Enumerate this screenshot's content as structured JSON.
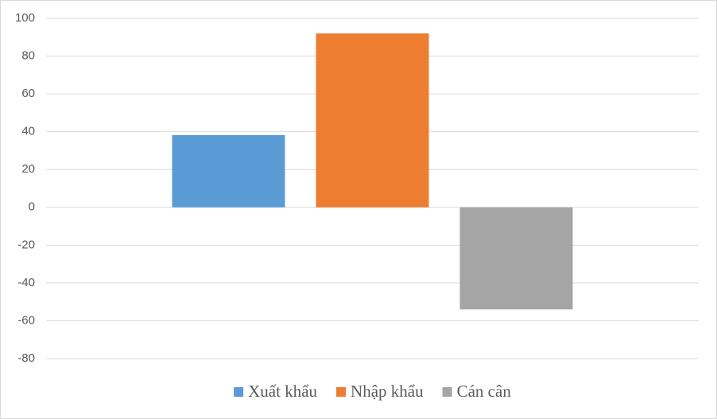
{
  "chart_data": {
    "type": "bar",
    "categories": [
      null
    ],
    "series": [
      {
        "name": "Xuất khẩu",
        "color": "#5b9bd5",
        "values": [
          38.2
        ]
      },
      {
        "name": "Nhập khẩu",
        "color": "#ed7d31",
        "values": [
          92
        ]
      },
      {
        "name": "Cán cân",
        "color": "#a5a5a5",
        "values": [
          -54
        ]
      }
    ],
    "ylim": [
      -80,
      100
    ],
    "yticks": [
      -80,
      -60,
      -40,
      -20,
      0,
      20,
      40,
      60,
      80,
      100
    ],
    "grid": true,
    "legend": "bottom"
  }
}
